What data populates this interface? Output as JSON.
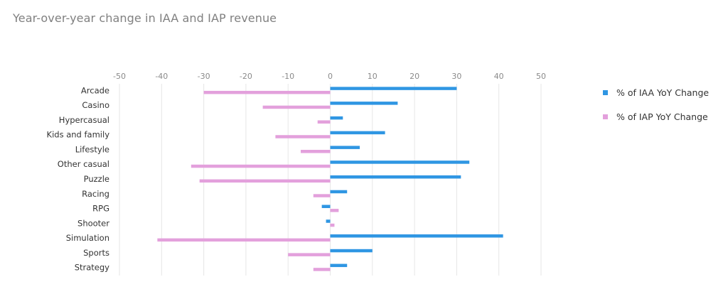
{
  "title": "Year-over-year change in IAA and IAP revenue",
  "colors": {
    "iaa": "#2f96e3",
    "iap": "#e3a0dc",
    "grid": "#e6e6e6"
  },
  "chart_data": {
    "type": "bar",
    "orientation": "horizontal",
    "title": "Year-over-year change in IAA and IAP revenue",
    "xlim": [
      -50,
      50
    ],
    "xticks": [
      "-50",
      "-40",
      "-30",
      "-20",
      "-10",
      "0",
      "10",
      "20",
      "30",
      "40",
      "50"
    ],
    "grid": true,
    "legend_position": "right",
    "categories": [
      "Arcade",
      "Casino",
      "Hypercasual",
      "Kids and family",
      "Lifestyle",
      "Other casual",
      "Puzzle",
      "Racing",
      "RPG",
      "Shooter",
      "Simulation",
      "Sports",
      "Strategy"
    ],
    "series": [
      {
        "name": "% of IAA YoY Change",
        "values": [
          30,
          16,
          3,
          13,
          7,
          33,
          31,
          4,
          -2,
          -1,
          41,
          10,
          4
        ]
      },
      {
        "name": "% of IAP YoY Change",
        "values": [
          -30,
          -16,
          -3,
          -13,
          -7,
          -33,
          -31,
          -4,
          2,
          1,
          -41,
          -10,
          -4
        ]
      }
    ]
  }
}
